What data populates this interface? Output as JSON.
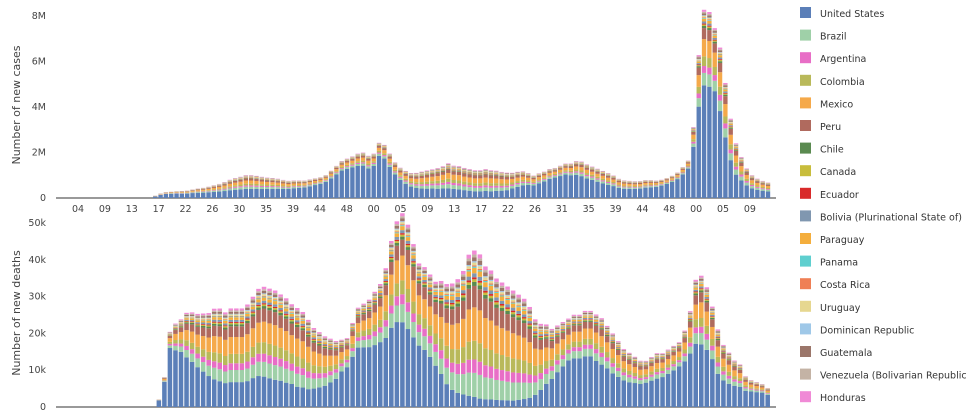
{
  "legend": [
    {
      "name": "United States",
      "color": "#5b7fb8"
    },
    {
      "name": "Brazil",
      "color": "#9fd0a8"
    },
    {
      "name": "Argentina",
      "color": "#e86ec6"
    },
    {
      "name": "Colombia",
      "color": "#b9b95a"
    },
    {
      "name": "Mexico",
      "color": "#f5a94a"
    },
    {
      "name": "Peru",
      "color": "#b06a5e"
    },
    {
      "name": "Chile",
      "color": "#5a8a50"
    },
    {
      "name": "Canada",
      "color": "#c8bd3c"
    },
    {
      "name": "Ecuador",
      "color": "#d92a2a"
    },
    {
      "name": "Bolivia (Plurinational State of)",
      "color": "#8097b0"
    },
    {
      "name": "Paraguay",
      "color": "#f4ae3d"
    },
    {
      "name": "Panama",
      "color": "#5fcfcf"
    },
    {
      "name": "Costa Rica",
      "color": "#ef7f55"
    },
    {
      "name": "Uruguay",
      "color": "#e6d790"
    },
    {
      "name": "Dominican Republic",
      "color": "#9fc8e8"
    },
    {
      "name": "Guatemala",
      "color": "#9b766a"
    },
    {
      "name": "Venezuela (Bolivarian Republic of)",
      "color": "#c4b3a5"
    },
    {
      "name": "Honduras",
      "color": "#f08ad6"
    }
  ],
  "chart_data": [
    {
      "type": "bar",
      "stacked": true,
      "ylabel": "Number of new cases",
      "y_ticks": [
        "0",
        "2M",
        "4M",
        "6M",
        "8M"
      ],
      "ylim": [
        0,
        8600000
      ],
      "x_tick_labels": [
        "04",
        "09",
        "13",
        "17",
        "22",
        "26",
        "30",
        "35",
        "39",
        "44",
        "48",
        "00",
        "05",
        "09",
        "13",
        "17",
        "22",
        "26",
        "31",
        "35",
        "39",
        "44",
        "48",
        "00",
        "05",
        "09"
      ],
      "totals": [
        0,
        0,
        0,
        0,
        0,
        0,
        0,
        0,
        0,
        0,
        0,
        0,
        0,
        0,
        0,
        0,
        0,
        100000,
        200000,
        260000,
        280000,
        300000,
        310000,
        330000,
        380000,
        420000,
        450000,
        500000,
        560000,
        620000,
        700000,
        800000,
        870000,
        930000,
        1000000,
        1000000,
        970000,
        930000,
        900000,
        880000,
        850000,
        800000,
        760000,
        780000,
        780000,
        780000,
        830000,
        880000,
        930000,
        1030000,
        1230000,
        1450000,
        1670000,
        1780000,
        1880000,
        2000000,
        2050000,
        1900000,
        2000000,
        2500000,
        2400000,
        2000000,
        1600000,
        1350000,
        1200000,
        1100000,
        1100000,
        1150000,
        1200000,
        1250000,
        1300000,
        1380000,
        1500000,
        1400000,
        1380000,
        1300000,
        1250000,
        1200000,
        1200000,
        1250000,
        1200000,
        1180000,
        1130000,
        1100000,
        1100000,
        1150000,
        1180000,
        1100000,
        1000000,
        1100000,
        1180000,
        1300000,
        1350000,
        1450000,
        1550000,
        1550000,
        1650000,
        1630000,
        1500000,
        1400000,
        1300000,
        1200000,
        1100000,
        1000000,
        850000,
        780000,
        760000,
        740000,
        750000,
        800000,
        800000,
        780000,
        820000,
        900000,
        1000000,
        1150000,
        1400000,
        1700000,
        3200000,
        6400000,
        8400000,
        8300000,
        7600000,
        6700000,
        5100000,
        3500000,
        2400000,
        1800000,
        1300000,
        1000000,
        850000,
        750000,
        680000,
        600000
      ],
      "us_share": [
        0,
        0,
        0,
        0,
        0,
        0,
        0,
        0,
        0,
        0,
        0,
        0,
        0,
        0,
        0,
        0,
        0,
        0.7,
        0.72,
        0.72,
        0.7,
        0.68,
        0.65,
        0.62,
        0.6,
        0.58,
        0.55,
        0.53,
        0.5,
        0.48,
        0.46,
        0.45,
        0.44,
        0.43,
        0.42,
        0.42,
        0.43,
        0.45,
        0.47,
        0.48,
        0.5,
        0.52,
        0.55,
        0.58,
        0.6,
        0.62,
        0.65,
        0.68,
        0.7,
        0.72,
        0.74,
        0.75,
        0.76,
        0.76,
        0.75,
        0.74,
        0.73,
        0.72,
        0.74,
        0.78,
        0.76,
        0.72,
        0.68,
        0.62,
        0.55,
        0.48,
        0.42,
        0.38,
        0.36,
        0.35,
        0.33,
        0.32,
        0.3,
        0.3,
        0.29,
        0.28,
        0.27,
        0.26,
        0.26,
        0.26,
        0.26,
        0.28,
        0.3,
        0.33,
        0.4,
        0.45,
        0.5,
        0.55,
        0.58,
        0.62,
        0.65,
        0.68,
        0.7,
        0.7,
        0.7,
        0.68,
        0.65,
        0.62,
        0.6,
        0.6,
        0.58,
        0.56,
        0.55,
        0.55,
        0.55,
        0.55,
        0.56,
        0.57,
        0.58,
        0.6,
        0.62,
        0.66,
        0.7,
        0.72,
        0.74,
        0.76,
        0.78,
        0.8,
        0.74,
        0.66,
        0.62,
        0.62,
        0.65,
        0.6,
        0.55,
        0.5,
        0.45,
        0.45,
        0.45,
        0.45,
        0.45,
        0.45,
        0.45
      ]
    },
    {
      "type": "bar",
      "stacked": true,
      "ylabel": "Number of new deaths",
      "y_ticks": [
        "0",
        "10k",
        "20k",
        "30k",
        "40k",
        "50k"
      ],
      "ylim": [
        0,
        51000
      ],
      "totals": [
        0,
        0,
        0,
        0,
        0,
        0,
        0,
        0,
        0,
        0,
        0,
        0,
        0,
        0,
        0,
        0,
        0,
        2000,
        8000,
        20000,
        22000,
        23000,
        24500,
        24500,
        24000,
        24000,
        24000,
        25000,
        25000,
        24000,
        25000,
        25000,
        25000,
        26000,
        28000,
        30000,
        30500,
        30000,
        29500,
        28500,
        27500,
        26000,
        25000,
        24000,
        22000,
        20000,
        19000,
        18000,
        17500,
        17000,
        17500,
        18000,
        22000,
        26000,
        27000,
        28000,
        30000,
        32000,
        36000,
        43000,
        48000,
        50000,
        47000,
        42000,
        37000,
        36000,
        34000,
        32000,
        32000,
        31000,
        31000,
        32000,
        34000,
        38000,
        39000,
        38000,
        35000,
        34000,
        32000,
        31000,
        30000,
        29000,
        28000,
        27000,
        25000,
        22000,
        21000,
        21000,
        20000,
        21000,
        22000,
        23000,
        24000,
        24000,
        25000,
        25000,
        24000,
        23000,
        21000,
        19000,
        17000,
        15000,
        14000,
        13000,
        12000,
        12000,
        13000,
        14000,
        14000,
        15000,
        16000,
        17000,
        20000,
        25000,
        33000,
        34000,
        31000,
        26000,
        20000,
        16000,
        14000,
        12000,
        11000,
        8000,
        7000,
        6500,
        6000,
        5000,
        4500
      ],
      "us_share": [
        0,
        0,
        0,
        0,
        0,
        0,
        0,
        0,
        0,
        0,
        0,
        0,
        0,
        0,
        0,
        0,
        0,
        0.9,
        0.85,
        0.8,
        0.7,
        0.65,
        0.55,
        0.5,
        0.45,
        0.4,
        0.35,
        0.3,
        0.28,
        0.27,
        0.27,
        0.27,
        0.27,
        0.27,
        0.28,
        0.28,
        0.27,
        0.26,
        0.25,
        0.25,
        0.24,
        0.24,
        0.22,
        0.22,
        0.22,
        0.25,
        0.28,
        0.32,
        0.38,
        0.45,
        0.55,
        0.6,
        0.62,
        0.62,
        0.6,
        0.58,
        0.56,
        0.55,
        0.52,
        0.5,
        0.48,
        0.46,
        0.45,
        0.45,
        0.45,
        0.43,
        0.4,
        0.35,
        0.28,
        0.2,
        0.15,
        0.12,
        0.1,
        0.08,
        0.07,
        0.06,
        0.06,
        0.06,
        0.06,
        0.06,
        0.06,
        0.06,
        0.07,
        0.08,
        0.1,
        0.15,
        0.22,
        0.3,
        0.38,
        0.45,
        0.5,
        0.55,
        0.55,
        0.55,
        0.55,
        0.55,
        0.52,
        0.5,
        0.5,
        0.48,
        0.48,
        0.48,
        0.48,
        0.5,
        0.52,
        0.55,
        0.55,
        0.55,
        0.58,
        0.6,
        0.62,
        0.65,
        0.62,
        0.58,
        0.52,
        0.5,
        0.5,
        0.5,
        0.45,
        0.45,
        0.45,
        0.48,
        0.5,
        0.55,
        0.6,
        0.62,
        0.65,
        0.66
      ]
    }
  ]
}
